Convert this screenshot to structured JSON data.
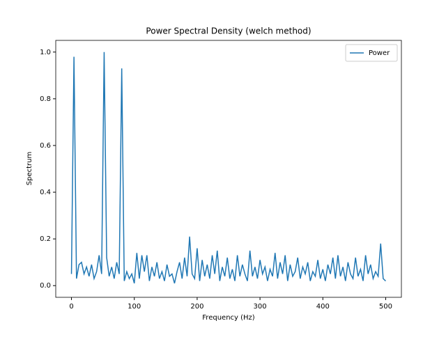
{
  "chart_data": {
    "type": "line",
    "title": "Power Spectral Density (welch method)",
    "xlabel": "Frequency (Hz)",
    "ylabel": "Spectrum",
    "x": [
      0,
      4,
      8,
      12,
      16,
      20,
      24,
      28,
      32,
      36,
      40,
      44,
      48,
      52,
      56,
      60,
      64,
      68,
      72,
      76,
      80,
      84,
      88,
      92,
      96,
      100,
      104,
      108,
      112,
      116,
      120,
      124,
      128,
      132,
      136,
      140,
      144,
      148,
      152,
      156,
      160,
      164,
      168,
      172,
      176,
      180,
      184,
      188,
      192,
      196,
      200,
      204,
      208,
      212,
      216,
      220,
      224,
      228,
      232,
      236,
      240,
      244,
      248,
      252,
      256,
      260,
      264,
      268,
      272,
      276,
      280,
      284,
      288,
      292,
      296,
      300,
      304,
      308,
      312,
      316,
      320,
      324,
      328,
      332,
      336,
      340,
      344,
      348,
      352,
      356,
      360,
      364,
      368,
      372,
      376,
      380,
      384,
      388,
      392,
      396,
      400,
      404,
      408,
      412,
      416,
      420,
      424,
      428,
      432,
      436,
      440,
      444,
      448,
      452,
      456,
      460,
      464,
      468,
      472,
      476,
      480,
      484,
      488,
      492,
      496,
      500
    ],
    "series": [
      {
        "name": "Power",
        "color": "#1f77b4",
        "values": [
          0.05,
          0.98,
          0.03,
          0.09,
          0.1,
          0.05,
          0.08,
          0.04,
          0.09,
          0.03,
          0.06,
          0.13,
          0.05,
          1.0,
          0.12,
          0.04,
          0.08,
          0.03,
          0.1,
          0.05,
          0.93,
          0.02,
          0.06,
          0.03,
          0.05,
          0.01,
          0.14,
          0.03,
          0.13,
          0.06,
          0.13,
          0.02,
          0.08,
          0.04,
          0.1,
          0.03,
          0.06,
          0.02,
          0.09,
          0.04,
          0.05,
          0.01,
          0.06,
          0.1,
          0.03,
          0.12,
          0.04,
          0.21,
          0.05,
          0.03,
          0.16,
          0.02,
          0.11,
          0.04,
          0.09,
          0.03,
          0.13,
          0.05,
          0.15,
          0.02,
          0.08,
          0.04,
          0.12,
          0.03,
          0.07,
          0.02,
          0.13,
          0.04,
          0.09,
          0.05,
          0.02,
          0.15,
          0.04,
          0.08,
          0.03,
          0.11,
          0.05,
          0.08,
          0.02,
          0.07,
          0.04,
          0.14,
          0.03,
          0.1,
          0.05,
          0.13,
          0.02,
          0.09,
          0.04,
          0.06,
          0.12,
          0.03,
          0.08,
          0.05,
          0.1,
          0.02,
          0.06,
          0.04,
          0.11,
          0.03,
          0.07,
          0.02,
          0.09,
          0.05,
          0.12,
          0.03,
          0.13,
          0.04,
          0.08,
          0.02,
          0.1,
          0.05,
          0.03,
          0.12,
          0.04,
          0.07,
          0.02,
          0.13,
          0.05,
          0.09,
          0.03,
          0.06,
          0.04,
          0.18,
          0.03,
          0.02
        ]
      }
    ],
    "xlim": [
      -25,
      525
    ],
    "xticks": [
      0,
      100,
      200,
      300,
      400,
      500
    ],
    "ylim": [
      -0.05,
      1.05
    ],
    "yticks": [
      {
        "value": 0,
        "label": "0.0"
      },
      {
        "value": 0.2,
        "label": "0.2"
      },
      {
        "value": 0.4,
        "label": "0.4"
      },
      {
        "value": 0.6,
        "label": "0.6"
      },
      {
        "value": 0.8,
        "label": "0.8"
      },
      {
        "value": 1.0,
        "label": "1.0"
      }
    ],
    "grid": false,
    "legend": "upper right"
  }
}
